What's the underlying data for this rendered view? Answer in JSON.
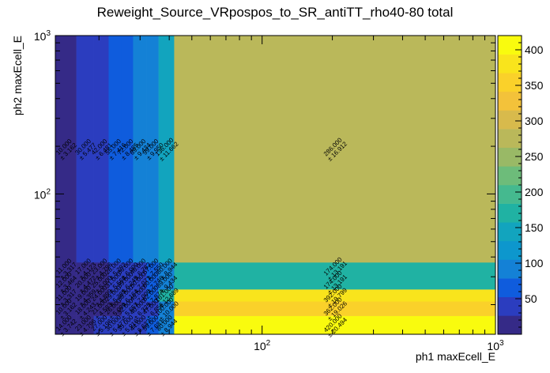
{
  "chart_data": {
    "type": "heatmap",
    "title": "Reweight_Source_VRpospos_to_SR_antiTT_rho40-80 total",
    "xlabel": "ph1 maxEcell_E",
    "ylabel": "ph2 maxEcell_E",
    "x_scale": "log",
    "y_scale": "log",
    "xlim": [
      13,
      1000
    ],
    "ylim": [
      13,
      1000
    ],
    "x_major_ticks": [
      {
        "value": 100,
        "label": "10^2"
      },
      {
        "value": 1000,
        "label": "10^3"
      }
    ],
    "y_major_ticks": [
      {
        "value": 100,
        "label": "10^2"
      },
      {
        "value": 1000,
        "label": "10^3"
      }
    ],
    "tick_base": "10",
    "tick_exponents": {
      "2": "2",
      "3": "3"
    },
    "x_bin_edges": [
      13,
      16,
      19,
      22,
      25,
      28,
      32,
      36,
      42,
      1000
    ],
    "y_bin_edges": [
      13,
      17,
      21,
      25,
      31,
      37,
      1000
    ],
    "z_range": [
      0,
      420
    ],
    "colorbar_ticks": [
      50,
      100,
      150,
      200,
      250,
      300,
      350,
      400
    ],
    "grid": false,
    "palette_stops": [
      "#352a87",
      "#2b3dbf",
      "#0f5cdd",
      "#1481d6",
      "#0d97cd",
      "#12a4be",
      "#20b2a3",
      "#45b98f",
      "#6dbc7a",
      "#99b966",
      "#bab85a",
      "#d8ba4c",
      "#f3c23a",
      "#fad12a",
      "#f9e41c",
      "#f9fb0e"
    ],
    "cells": [
      {
        "xi": 0,
        "yi": 0,
        "value": 14.0,
        "error": 3.742
      },
      {
        "xi": 1,
        "yi": 0,
        "value": 23.0,
        "error": 4.796
      },
      {
        "xi": 2,
        "yi": 0,
        "value": 27.0,
        "error": 5.196
      },
      {
        "xi": 3,
        "yi": 0,
        "value": 30.0,
        "error": 5.477
      },
      {
        "xi": 4,
        "yi": 0,
        "value": 35.0,
        "error": 5.916
      },
      {
        "xi": 5,
        "yi": 0,
        "value": 44.0,
        "error": 6.633
      },
      {
        "xi": 6,
        "yi": 0,
        "value": 59.0,
        "error": 7.681
      },
      {
        "xi": 7,
        "yi": 0,
        "value": 80.0,
        "error": 8.944
      },
      {
        "xi": 8,
        "yi": 0,
        "value": 420.0,
        "error": 20.494
      },
      {
        "xi": 0,
        "yi": 1,
        "value": 10.0,
        "error": 3.162
      },
      {
        "xi": 1,
        "yi": 1,
        "value": 18.0,
        "error": 4.243
      },
      {
        "xi": 2,
        "yi": 1,
        "value": 21.0,
        "error": 4.583
      },
      {
        "xi": 3,
        "yi": 1,
        "value": 26.0,
        "error": 5.099
      },
      {
        "xi": 4,
        "yi": 1,
        "value": 32.0,
        "error": 5.657
      },
      {
        "xi": 5,
        "yi": 1,
        "value": 40.0,
        "error": 6.325
      },
      {
        "xi": 6,
        "yi": 1,
        "value": 47.0,
        "error": 6.856
      },
      {
        "xi": 7,
        "yi": 1,
        "value": 100.0,
        "error": 10.0
      },
      {
        "xi": 8,
        "yi": 1,
        "value": 362.0,
        "error": 19.026
      },
      {
        "xi": 0,
        "yi": 2,
        "value": 11.0,
        "error": 3.317
      },
      {
        "xi": 1,
        "yi": 2,
        "value": 19.0,
        "error": 4.359
      },
      {
        "xi": 2,
        "yi": 2,
        "value": 24.0,
        "error": 4.899
      },
      {
        "xi": 3,
        "yi": 2,
        "value": 29.0,
        "error": 5.385
      },
      {
        "xi": 4,
        "yi": 2,
        "value": 38.0,
        "error": 6.164
      },
      {
        "xi": 5,
        "yi": 2,
        "value": 49.0,
        "error": 7.0
      },
      {
        "xi": 6,
        "yi": 2,
        "value": 62.0,
        "error": 7.874
      },
      {
        "xi": 7,
        "yi": 2,
        "value": 161.0,
        "error": 12.689
      },
      {
        "xi": 8,
        "yi": 2,
        "value": 392.0,
        "error": 19.799
      },
      {
        "xi": 0,
        "yi": 3,
        "value": 12.0,
        "error": 3.464
      },
      {
        "xi": 1,
        "yi": 3,
        "value": 20.0,
        "error": 4.472
      },
      {
        "xi": 2,
        "yi": 3,
        "value": 25.0,
        "error": 5.0
      },
      {
        "xi": 3,
        "yi": 3,
        "value": 31.0,
        "error": 5.568
      },
      {
        "xi": 4,
        "yi": 3,
        "value": 39.0,
        "error": 6.245
      },
      {
        "xi": 5,
        "yi": 3,
        "value": 50.0,
        "error": 7.071
      },
      {
        "xi": 6,
        "yi": 3,
        "value": 60.0,
        "error": 7.746
      },
      {
        "xi": 7,
        "yi": 3,
        "value": 89.0,
        "error": 9.434
      },
      {
        "xi": 8,
        "yi": 3,
        "value": 174.0,
        "error": 13.191
      },
      {
        "xi": 0,
        "yi": 4,
        "value": 11.0,
        "error": 3.317
      },
      {
        "xi": 1,
        "yi": 4,
        "value": 17.0,
        "error": 4.123
      },
      {
        "xi": 2,
        "yi": 4,
        "value": 23.0,
        "error": 4.796
      },
      {
        "xi": 3,
        "yi": 4,
        "value": 28.0,
        "error": 5.292
      },
      {
        "xi": 4,
        "yi": 4,
        "value": 36.0,
        "error": 6.0
      },
      {
        "xi": 5,
        "yi": 4,
        "value": 46.0,
        "error": 6.782
      },
      {
        "xi": 6,
        "yi": 4,
        "value": 57.0,
        "error": 7.55
      },
      {
        "xi": 7,
        "yi": 4,
        "value": 80.0,
        "error": 8.944
      },
      {
        "xi": 8,
        "yi": 4,
        "value": 174.0,
        "error": 13.191
      },
      {
        "xi": 0,
        "yi": 5,
        "value": 10.0,
        "error": 3.162
      },
      {
        "xi": 1,
        "yi": 5,
        "value": 30.0,
        "error": 5.477
      },
      {
        "xi": 2,
        "yi": 5,
        "value": 42.0,
        "error": 6.481
      },
      {
        "xi": 3,
        "yi": 5,
        "value": 55.0,
        "error": 7.416
      },
      {
        "xi": 4,
        "yi": 5,
        "value": 72.0,
        "error": 8.485
      },
      {
        "xi": 5,
        "yi": 5,
        "value": 89.0,
        "error": 9.434
      },
      {
        "xi": 6,
        "yi": 5,
        "value": 99.0,
        "error": 9.95
      },
      {
        "xi": 7,
        "yi": 5,
        "value": 136.0,
        "error": 11.662
      },
      {
        "xi": 8,
        "yi": 5,
        "value": 286.0,
        "error": 16.912
      }
    ]
  }
}
